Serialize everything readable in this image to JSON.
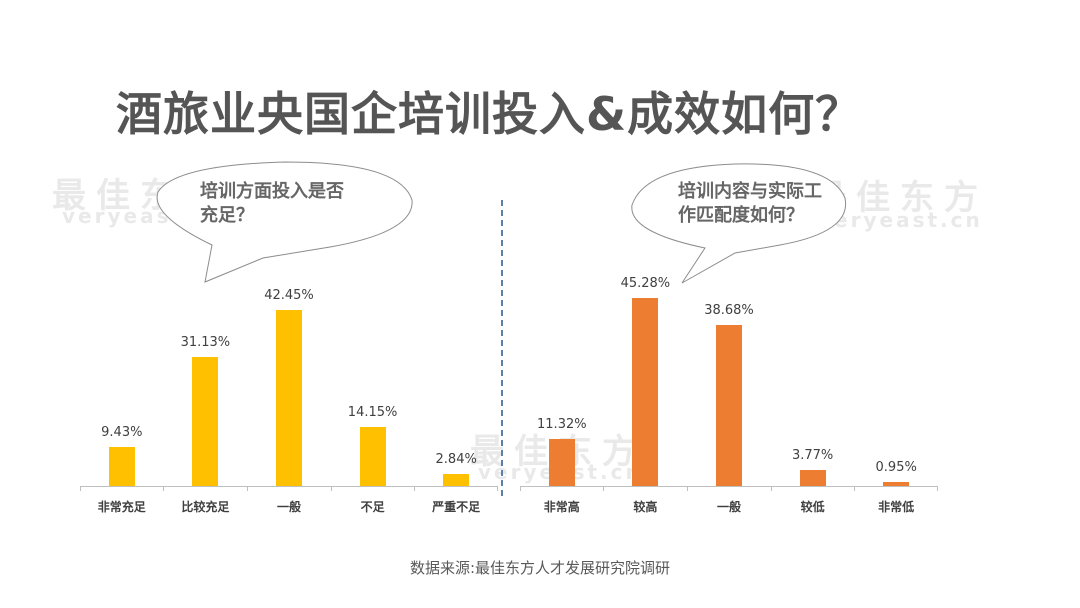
{
  "title": "酒旅业央国企培训投入&成效如何？",
  "watermark": {
    "cn": "最佳东方",
    "en": "veryeast.cn"
  },
  "source": "数据来源:最佳东方人才发展研究院调研",
  "colors": {
    "left_bar": "#FFC000",
    "right_bar": "#ED7D31",
    "divider": "#5A7FA8",
    "title": "#555555"
  },
  "left": {
    "question_line1": "培训方面投入是否",
    "question_line2": "充足？",
    "bars": [
      {
        "label": "非常充足",
        "value": "9.43%"
      },
      {
        "label": "比较充足",
        "value": "31.13%"
      },
      {
        "label": "一般",
        "value": "42.45%"
      },
      {
        "label": "不足",
        "value": "14.15%"
      },
      {
        "label": "严重不足",
        "value": "2.84%"
      }
    ]
  },
  "right": {
    "question_line1": "培训内容与实际工",
    "question_line2": "作匹配度如何？",
    "bars": [
      {
        "label": "非常高",
        "value": "11.32%"
      },
      {
        "label": "较高",
        "value": "45.28%"
      },
      {
        "label": "一般",
        "value": "38.68%"
      },
      {
        "label": "较低",
        "value": "3.77%"
      },
      {
        "label": "非常低",
        "value": "0.95%"
      }
    ]
  },
  "chart_data": [
    {
      "type": "bar",
      "title": "培训方面投入是否充足？",
      "categories": [
        "非常充足",
        "比较充足",
        "一般",
        "不足",
        "严重不足"
      ],
      "values": [
        9.43,
        31.13,
        42.45,
        14.15,
        2.84
      ],
      "unit": "%",
      "color": "#FFC000",
      "xlabel": "",
      "ylabel": "",
      "grid": false,
      "legend": null
    },
    {
      "type": "bar",
      "title": "培训内容与实际工作匹配度如何？",
      "categories": [
        "非常高",
        "较高",
        "一般",
        "较低",
        "非常低"
      ],
      "values": [
        11.32,
        45.28,
        38.68,
        3.77,
        0.95
      ],
      "unit": "%",
      "color": "#ED7D31",
      "xlabel": "",
      "ylabel": "",
      "grid": false,
      "legend": null
    }
  ]
}
